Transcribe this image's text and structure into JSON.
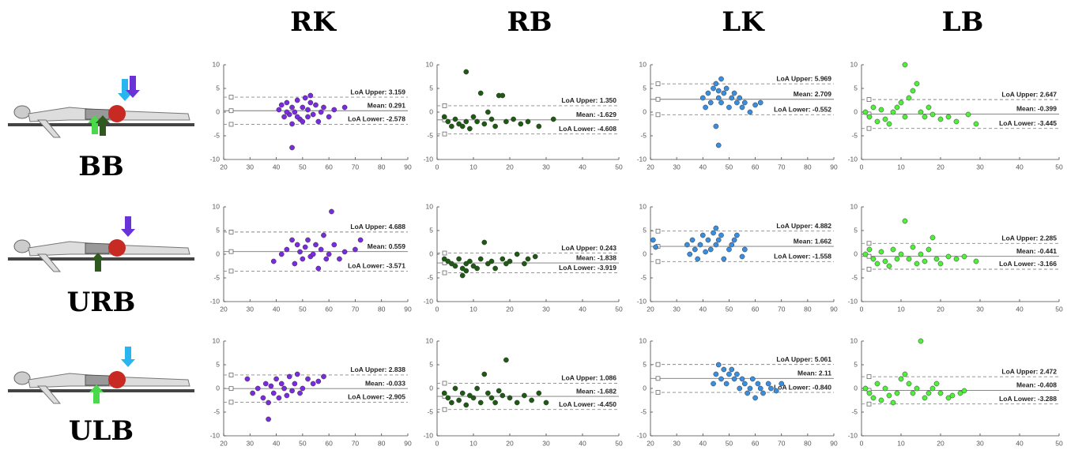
{
  "header": {
    "columns": [
      "RK",
      "RB",
      "LK",
      "LB"
    ],
    "rows": [
      "BB",
      "URB",
      "ULB"
    ]
  },
  "chart_data": [
    {
      "type": "scatter",
      "color": "#7a2be0",
      "xlim": [
        20,
        90
      ],
      "xticks": [
        20,
        30,
        40,
        50,
        60,
        70,
        80,
        90
      ],
      "ylim": [
        -10,
        10
      ],
      "yticks": [
        -10,
        -5,
        0,
        5,
        10
      ],
      "x": [
        41,
        42,
        43,
        44,
        45,
        46,
        46,
        47,
        48,
        49,
        50,
        50,
        51,
        52,
        52,
        53,
        54,
        55,
        56,
        57,
        58,
        60,
        62,
        66,
        46,
        44,
        48,
        53
      ],
      "y": [
        0.5,
        1.5,
        -1,
        2,
        -0.5,
        -7.5,
        1,
        0,
        2.5,
        -1.5,
        1,
        -2,
        3,
        0.5,
        -1,
        2,
        -0.5,
        1.5,
        -2,
        0,
        1,
        -1,
        0.5,
        1,
        -2.5,
        0,
        -1,
        3.5
      ],
      "lines": [
        {
          "value": 3.159,
          "label": "LoA Upper: 3.159"
        },
        {
          "value": 0.291,
          "label": "Mean: 0.291"
        },
        {
          "value": -2.578,
          "label": "LoA Lower: -2.578"
        }
      ]
    },
    {
      "type": "scatter",
      "color": "#1f5a14",
      "xlim": [
        0,
        50
      ],
      "xticks": [
        0,
        10,
        20,
        30,
        40,
        50
      ],
      "ylim": [
        -10,
        10
      ],
      "yticks": [
        -10,
        -5,
        0,
        5,
        10
      ],
      "x": [
        2,
        3,
        4,
        5,
        6,
        7,
        8,
        8,
        9,
        10,
        11,
        12,
        13,
        14,
        15,
        16,
        17,
        18,
        19,
        21,
        23,
        25,
        28,
        32
      ],
      "y": [
        -1,
        -2,
        -3,
        -1.5,
        -2.5,
        -3,
        8.5,
        -2,
        -3.5,
        -1,
        -2,
        4,
        -2.5,
        0,
        -1.5,
        -3,
        3.5,
        3.5,
        -2,
        -1.5,
        -2.5,
        -2,
        -3,
        -1.5
      ],
      "lines": [
        {
          "value": 1.35,
          "label": "LoA Upper: 1.350"
        },
        {
          "value": -1.629,
          "label": "Mean: -1.629"
        },
        {
          "value": -4.608,
          "label": "LoA Lower: -4.608"
        }
      ]
    },
    {
      "type": "scatter",
      "color": "#3a8ee0",
      "xlim": [
        20,
        90
      ],
      "xticks": [
        20,
        30,
        40,
        50,
        60,
        70,
        80,
        90
      ],
      "ylim": [
        -10,
        10
      ],
      "yticks": [
        -10,
        -5,
        0,
        5,
        10
      ],
      "x": [
        40,
        41,
        42,
        43,
        44,
        45,
        45,
        46,
        46,
        47,
        47,
        48,
        49,
        50,
        51,
        52,
        53,
        54,
        55,
        56,
        58,
        60,
        62,
        46
      ],
      "y": [
        3,
        1,
        4,
        2,
        5,
        -3,
        6,
        -7,
        3,
        7,
        2,
        4,
        5,
        1,
        3,
        4,
        2,
        3,
        1,
        2,
        0,
        1.5,
        2,
        4.5
      ],
      "lines": [
        {
          "value": 5.969,
          "label": "LoA Upper: 5.969"
        },
        {
          "value": 2.709,
          "label": "Mean: 2.709"
        },
        {
          "value": -0.552,
          "label": "LoA Lower: -0.552"
        }
      ]
    },
    {
      "type": "scatter",
      "color": "#4ef03a",
      "xlim": [
        0,
        50
      ],
      "xticks": [
        0,
        10,
        20,
        30,
        40,
        50
      ],
      "ylim": [
        -10,
        10
      ],
      "yticks": [
        -10,
        -5,
        0,
        5,
        10
      ],
      "x": [
        1,
        2,
        3,
        4,
        5,
        6,
        7,
        8,
        9,
        10,
        11,
        11,
        12,
        13,
        14,
        15,
        16,
        17,
        18,
        20,
        22,
        24,
        27,
        29
      ],
      "y": [
        0,
        -1,
        1,
        -2,
        0.5,
        -1.5,
        -2.5,
        0,
        1,
        2,
        10,
        -1,
        3,
        4.5,
        6,
        0,
        -1,
        1,
        -0.5,
        -1.5,
        -1,
        -2,
        -0.5,
        -2.5
      ],
      "lines": [
        {
          "value": 2.647,
          "label": "LoA Upper: 2.647"
        },
        {
          "value": -0.399,
          "label": "Mean: -0.399"
        },
        {
          "value": -3.445,
          "label": "LoA Lower: -3.445"
        }
      ]
    },
    {
      "type": "scatter",
      "color": "#7a2be0",
      "xlim": [
        20,
        90
      ],
      "xticks": [
        20,
        30,
        40,
        50,
        60,
        70,
        80,
        90
      ],
      "ylim": [
        -10,
        10
      ],
      "yticks": [
        -10,
        -5,
        0,
        5,
        10
      ],
      "x": [
        39,
        42,
        44,
        46,
        47,
        48,
        49,
        50,
        51,
        52,
        53,
        54,
        55,
        56,
        57,
        58,
        59,
        60,
        61,
        62,
        64,
        66,
        70,
        72
      ],
      "y": [
        -1.5,
        0,
        1,
        3,
        -2,
        2,
        0.5,
        -1,
        1.5,
        3,
        -0.5,
        0,
        2,
        -3,
        1,
        4,
        -1,
        0,
        9,
        2,
        -1,
        0.5,
        1,
        3
      ],
      "lines": [
        {
          "value": 4.688,
          "label": "LoA Upper: 4.688"
        },
        {
          "value": 0.559,
          "label": "Mean: 0.559"
        },
        {
          "value": -3.571,
          "label": "LoA Lower: -3.571"
        }
      ]
    },
    {
      "type": "scatter",
      "color": "#1f5a14",
      "xlim": [
        0,
        50
      ],
      "xticks": [
        0,
        10,
        20,
        30,
        40,
        50
      ],
      "ylim": [
        -10,
        10
      ],
      "yticks": [
        -10,
        -5,
        0,
        5,
        10
      ],
      "x": [
        2,
        3,
        4,
        5,
        6,
        7,
        7,
        8,
        8,
        9,
        10,
        11,
        12,
        13,
        14,
        15,
        16,
        18,
        19,
        20,
        22,
        24,
        25,
        27
      ],
      "y": [
        -1,
        -1.5,
        -2,
        -2.5,
        -1,
        -3,
        -4.5,
        -2,
        -3.5,
        -1.5,
        -2.5,
        -3,
        -1,
        2.5,
        -2,
        -1.5,
        -3,
        -1,
        -2,
        -1.5,
        0,
        -2,
        -1,
        -0.5
      ],
      "lines": [
        {
          "value": 0.243,
          "label": "LoA Upper: 0.243"
        },
        {
          "value": -1.838,
          "label": "Mean: -1.838"
        },
        {
          "value": -3.919,
          "label": "LoA Lower: -3.919"
        }
      ]
    },
    {
      "type": "scatter",
      "color": "#3a8ee0",
      "xlim": [
        20,
        90
      ],
      "xticks": [
        20,
        30,
        40,
        50,
        60,
        70,
        80,
        90
      ],
      "ylim": [
        -10,
        10
      ],
      "yticks": [
        -10,
        -5,
        0,
        5,
        10
      ],
      "x": [
        21,
        22,
        34,
        35,
        36,
        37,
        38,
        39,
        40,
        41,
        42,
        43,
        44,
        45,
        45,
        46,
        47,
        48,
        50,
        51,
        52,
        53,
        55,
        56
      ],
      "y": [
        3,
        1.5,
        2,
        0,
        3,
        1,
        -1,
        2,
        4,
        0.5,
        3,
        1,
        4.5,
        2,
        5.5,
        3,
        4,
        -1,
        1,
        2,
        3,
        4,
        -0.5,
        1
      ],
      "lines": [
        {
          "value": 4.882,
          "label": "LoA Upper: 4.882"
        },
        {
          "value": 1.662,
          "label": "Mean: 1.662"
        },
        {
          "value": -1.558,
          "label": "LoA Lower: -1.558"
        }
      ]
    },
    {
      "type": "scatter",
      "color": "#4ef03a",
      "xlim": [
        0,
        50
      ],
      "xticks": [
        0,
        10,
        20,
        30,
        40,
        50
      ],
      "ylim": [
        -10,
        10
      ],
      "yticks": [
        -10,
        -5,
        0,
        5,
        10
      ],
      "x": [
        1,
        2,
        3,
        4,
        5,
        6,
        7,
        8,
        9,
        10,
        11,
        12,
        13,
        14,
        15,
        16,
        17,
        18,
        19,
        20,
        22,
        24,
        26,
        29
      ],
      "y": [
        0,
        1,
        -1,
        -2,
        0.5,
        -1.5,
        -2.5,
        1,
        -1,
        0,
        7,
        -1,
        1.5,
        -2,
        0,
        -1.5,
        1,
        3.5,
        -1,
        -2,
        -0.5,
        -1,
        -0.5,
        -1.5
      ],
      "lines": [
        {
          "value": 2.285,
          "label": "LoA Upper: 2.285"
        },
        {
          "value": -0.441,
          "label": "Mean: -0.441"
        },
        {
          "value": -3.166,
          "label": "LoA Lower: -3.166"
        }
      ]
    },
    {
      "type": "scatter",
      "color": "#7a2be0",
      "xlim": [
        20,
        90
      ],
      "xticks": [
        20,
        30,
        40,
        50,
        60,
        70,
        80,
        90
      ],
      "ylim": [
        -10,
        10
      ],
      "yticks": [
        -10,
        -5,
        0,
        5,
        10
      ],
      "x": [
        29,
        31,
        33,
        35,
        36,
        37,
        37,
        38,
        39,
        40,
        41,
        42,
        43,
        44,
        45,
        46,
        47,
        48,
        49,
        50,
        52,
        54,
        56,
        58
      ],
      "y": [
        2,
        -1,
        0,
        -2,
        1,
        -6.5,
        -3,
        0.5,
        -1,
        2,
        -2,
        1,
        0,
        -1.5,
        2.5,
        -0.5,
        1,
        3,
        -1,
        0,
        2,
        1,
        1.5,
        2.5
      ],
      "lines": [
        {
          "value": 2.838,
          "label": "LoA Upper: 2.838"
        },
        {
          "value": -0.033,
          "label": "Mean: -0.033"
        },
        {
          "value": -2.905,
          "label": "LoA Lower: -2.905"
        }
      ]
    },
    {
      "type": "scatter",
      "color": "#1f5a14",
      "xlim": [
        0,
        50
      ],
      "xticks": [
        0,
        10,
        20,
        30,
        40,
        50
      ],
      "ylim": [
        -10,
        10
      ],
      "yticks": [
        -10,
        -5,
        0,
        5,
        10
      ],
      "x": [
        2,
        3,
        4,
        5,
        6,
        7,
        8,
        9,
        10,
        11,
        12,
        13,
        14,
        15,
        16,
        17,
        18,
        19,
        20,
        22,
        24,
        26,
        28,
        30
      ],
      "y": [
        -1,
        -2,
        -3,
        0,
        -2.5,
        -1,
        -3.5,
        -1.5,
        -2,
        0,
        -3,
        3,
        -1,
        -2,
        -3,
        -0.5,
        -1.5,
        6,
        -2,
        -3,
        -1.5,
        -2.5,
        -1,
        -3
      ],
      "lines": [
        {
          "value": 1.086,
          "label": "LoA Upper: 1.086"
        },
        {
          "value": -1.682,
          "label": "Mean: -1.682"
        },
        {
          "value": -4.45,
          "label": "LoA Lower: -4.450"
        }
      ]
    },
    {
      "type": "scatter",
      "color": "#3a8ee0",
      "xlim": [
        20,
        90
      ],
      "xticks": [
        20,
        30,
        40,
        50,
        60,
        70,
        80,
        90
      ],
      "ylim": [
        -10,
        10
      ],
      "yticks": [
        -10,
        -5,
        0,
        5,
        10
      ],
      "x": [
        44,
        45,
        46,
        47,
        48,
        49,
        50,
        51,
        52,
        53,
        54,
        55,
        56,
        57,
        58,
        59,
        60,
        61,
        62,
        63,
        65,
        66,
        68,
        70
      ],
      "y": [
        1,
        3,
        5,
        2,
        4,
        1,
        3,
        4,
        2,
        3,
        0,
        2,
        1,
        -1,
        0,
        2,
        -2,
        1,
        0,
        -1,
        1,
        0,
        -0.5,
        1
      ],
      "lines": [
        {
          "value": 5.061,
          "label": "LoA Upper: 5.061"
        },
        {
          "value": 2.11,
          "label": "Mean: 2.11"
        },
        {
          "value": -0.84,
          "label": "LoA Lower: -0.840"
        }
      ]
    },
    {
      "type": "scatter",
      "color": "#4ef03a",
      "xlim": [
        0,
        50
      ],
      "xticks": [
        0,
        10,
        20,
        30,
        40,
        50
      ],
      "ylim": [
        -10,
        10
      ],
      "yticks": [
        -10,
        -5,
        0,
        5,
        10
      ],
      "x": [
        1,
        2,
        3,
        4,
        5,
        6,
        7,
        8,
        9,
        10,
        11,
        12,
        13,
        14,
        15,
        16,
        17,
        18,
        19,
        20,
        22,
        23,
        25,
        26
      ],
      "y": [
        0,
        -1,
        -2,
        1,
        -2.5,
        0,
        -1.5,
        -3,
        -1,
        2,
        3,
        1,
        -1,
        0,
        10,
        -2,
        -1,
        0,
        1,
        -1,
        -2,
        -1.5,
        -1,
        -0.5
      ],
      "lines": [
        {
          "value": 2.472,
          "label": "LoA Upper: 2.472"
        },
        {
          "value": -0.408,
          "label": "Mean: -0.408"
        },
        {
          "value": -3.288,
          "label": "LoA Lower: -3.288"
        }
      ]
    }
  ]
}
